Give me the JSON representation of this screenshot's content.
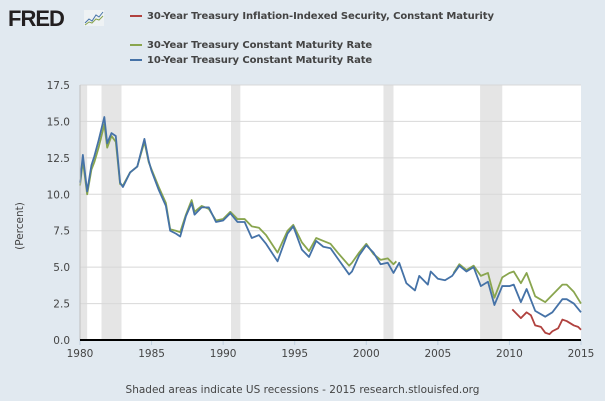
{
  "logo": "FRED",
  "footer": "Shaded areas indicate US recessions - 2015 research.stlouisfed.org",
  "chart_data": {
    "type": "line",
    "title": "",
    "xlabel": "",
    "ylabel": "(Percent)",
    "xlim": [
      1980,
      2015
    ],
    "ylim": [
      0,
      17.5
    ],
    "x_ticks": [
      "1980",
      "1985",
      "1990",
      "1995",
      "2000",
      "2005",
      "2010",
      "2015"
    ],
    "y_ticks": [
      "0.0",
      "2.5",
      "5.0",
      "7.5",
      "10.0",
      "12.5",
      "15.0",
      "17.5"
    ],
    "grid": true,
    "legend_placement": "top",
    "recessions": [
      [
        1980.0,
        1980.5
      ],
      [
        1981.5,
        1982.9
      ],
      [
        1990.55,
        1991.2
      ],
      [
        2001.2,
        2001.9
      ],
      [
        2007.95,
        2009.5
      ]
    ],
    "series": [
      {
        "name": "30-Year Treasury Inflation-Indexed Security, Constant Maturity",
        "color": "#b0413e",
        "points": [
          [
            2010.2,
            2.1
          ],
          [
            2010.5,
            1.8
          ],
          [
            2010.8,
            1.5
          ],
          [
            2011.2,
            1.9
          ],
          [
            2011.5,
            1.7
          ],
          [
            2011.8,
            1.0
          ],
          [
            2012.2,
            0.9
          ],
          [
            2012.5,
            0.5
          ],
          [
            2012.8,
            0.4
          ],
          [
            2013.0,
            0.6
          ],
          [
            2013.4,
            0.8
          ],
          [
            2013.7,
            1.4
          ],
          [
            2014.0,
            1.3
          ],
          [
            2014.5,
            1.0
          ],
          [
            2014.8,
            0.9
          ],
          [
            2015.0,
            0.7
          ]
        ]
      },
      {
        "name": "30-Year Treasury Constant Maturity Rate",
        "color": "#89a54e",
        "segments": [
          [
            [
              1980.0,
              10.6
            ],
            [
              1980.2,
              12.3
            ],
            [
              1980.5,
              10.0
            ],
            [
              1980.8,
              11.7
            ],
            [
              1981.0,
              12.2
            ],
            [
              1981.3,
              13.2
            ],
            [
              1981.7,
              14.8
            ],
            [
              1981.9,
              13.2
            ],
            [
              1982.2,
              14.0
            ],
            [
              1982.5,
              13.6
            ],
            [
              1982.8,
              10.7
            ],
            [
              1983.0,
              10.6
            ],
            [
              1983.5,
              11.5
            ],
            [
              1984.0,
              11.9
            ],
            [
              1984.5,
              13.6
            ],
            [
              1984.8,
              12.2
            ],
            [
              1985.0,
              11.7
            ],
            [
              1985.5,
              10.5
            ],
            [
              1986.0,
              9.4
            ],
            [
              1986.3,
              7.6
            ],
            [
              1986.7,
              7.5
            ],
            [
              1987.0,
              7.4
            ],
            [
              1987.4,
              8.6
            ],
            [
              1987.8,
              9.6
            ],
            [
              1988.0,
              8.8
            ],
            [
              1988.5,
              9.2
            ],
            [
              1989.0,
              9.0
            ],
            [
              1989.5,
              8.2
            ],
            [
              1990.0,
              8.3
            ],
            [
              1990.5,
              8.8
            ],
            [
              1991.0,
              8.3
            ],
            [
              1991.5,
              8.3
            ],
            [
              1992.0,
              7.8
            ],
            [
              1992.5,
              7.7
            ],
            [
              1993.0,
              7.2
            ],
            [
              1993.8,
              6.0
            ],
            [
              1994.5,
              7.5
            ],
            [
              1994.9,
              7.9
            ],
            [
              1995.5,
              6.7
            ],
            [
              1996.0,
              6.1
            ],
            [
              1996.5,
              7.0
            ],
            [
              1997.0,
              6.8
            ],
            [
              1997.5,
              6.6
            ],
            [
              1998.0,
              6.0
            ],
            [
              1998.8,
              5.1
            ],
            [
              1999.0,
              5.3
            ],
            [
              1999.5,
              6.0
            ],
            [
              2000.0,
              6.6
            ],
            [
              2000.5,
              5.9
            ],
            [
              2001.0,
              5.5
            ],
            [
              2001.5,
              5.6
            ],
            [
              2001.9,
              5.2
            ],
            [
              2002.1,
              5.4
            ]
          ],
          [
            [
              2006.1,
              4.6
            ],
            [
              2006.5,
              5.2
            ],
            [
              2007.0,
              4.8
            ],
            [
              2007.5,
              5.1
            ],
            [
              2008.0,
              4.4
            ],
            [
              2008.5,
              4.6
            ],
            [
              2008.95,
              2.9
            ],
            [
              2009.5,
              4.3
            ],
            [
              2010.0,
              4.6
            ],
            [
              2010.3,
              4.7
            ],
            [
              2010.8,
              3.9
            ],
            [
              2011.2,
              4.6
            ],
            [
              2011.8,
              3.0
            ],
            [
              2012.5,
              2.6
            ],
            [
              2013.0,
              3.1
            ],
            [
              2013.7,
              3.8
            ],
            [
              2014.0,
              3.8
            ],
            [
              2014.5,
              3.3
            ],
            [
              2015.0,
              2.5
            ]
          ]
        ]
      },
      {
        "name": "10-Year Treasury Constant Maturity Rate",
        "color": "#4572a7",
        "points": [
          [
            1980.0,
            10.8
          ],
          [
            1980.2,
            12.7
          ],
          [
            1980.5,
            10.2
          ],
          [
            1980.8,
            12.0
          ],
          [
            1981.0,
            12.6
          ],
          [
            1981.3,
            13.7
          ],
          [
            1981.7,
            15.3
          ],
          [
            1981.9,
            13.5
          ],
          [
            1982.2,
            14.2
          ],
          [
            1982.5,
            14.0
          ],
          [
            1982.8,
            10.8
          ],
          [
            1983.0,
            10.5
          ],
          [
            1983.5,
            11.5
          ],
          [
            1984.0,
            11.9
          ],
          [
            1984.5,
            13.8
          ],
          [
            1984.8,
            12.3
          ],
          [
            1985.0,
            11.6
          ],
          [
            1985.5,
            10.3
          ],
          [
            1986.0,
            9.2
          ],
          [
            1986.3,
            7.5
          ],
          [
            1986.7,
            7.3
          ],
          [
            1987.0,
            7.1
          ],
          [
            1987.4,
            8.5
          ],
          [
            1987.8,
            9.4
          ],
          [
            1988.0,
            8.6
          ],
          [
            1988.5,
            9.1
          ],
          [
            1989.0,
            9.1
          ],
          [
            1989.5,
            8.1
          ],
          [
            1990.0,
            8.2
          ],
          [
            1990.5,
            8.7
          ],
          [
            1991.0,
            8.1
          ],
          [
            1991.5,
            8.1
          ],
          [
            1992.0,
            7.0
          ],
          [
            1992.5,
            7.2
          ],
          [
            1993.0,
            6.6
          ],
          [
            1993.8,
            5.4
          ],
          [
            1994.5,
            7.3
          ],
          [
            1994.9,
            7.8
          ],
          [
            1995.5,
            6.2
          ],
          [
            1996.0,
            5.7
          ],
          [
            1996.5,
            6.8
          ],
          [
            1997.0,
            6.4
          ],
          [
            1997.5,
            6.3
          ],
          [
            1998.0,
            5.6
          ],
          [
            1998.8,
            4.5
          ],
          [
            1999.0,
            4.7
          ],
          [
            1999.5,
            5.8
          ],
          [
            2000.0,
            6.5
          ],
          [
            2000.5,
            6.0
          ],
          [
            2001.0,
            5.2
          ],
          [
            2001.5,
            5.3
          ],
          [
            2001.9,
            4.6
          ],
          [
            2002.3,
            5.3
          ],
          [
            2002.8,
            3.9
          ],
          [
            2003.4,
            3.4
          ],
          [
            2003.7,
            4.4
          ],
          [
            2004.3,
            3.8
          ],
          [
            2004.5,
            4.7
          ],
          [
            2005.0,
            4.2
          ],
          [
            2005.5,
            4.1
          ],
          [
            2006.0,
            4.4
          ],
          [
            2006.5,
            5.1
          ],
          [
            2007.0,
            4.7
          ],
          [
            2007.5,
            5.0
          ],
          [
            2008.0,
            3.7
          ],
          [
            2008.5,
            4.0
          ],
          [
            2008.95,
            2.4
          ],
          [
            2009.5,
            3.7
          ],
          [
            2010.0,
            3.7
          ],
          [
            2010.3,
            3.8
          ],
          [
            2010.8,
            2.6
          ],
          [
            2011.2,
            3.5
          ],
          [
            2011.8,
            2.0
          ],
          [
            2012.5,
            1.6
          ],
          [
            2013.0,
            1.9
          ],
          [
            2013.7,
            2.8
          ],
          [
            2014.0,
            2.8
          ],
          [
            2014.5,
            2.5
          ],
          [
            2015.0,
            1.9
          ]
        ]
      }
    ]
  }
}
